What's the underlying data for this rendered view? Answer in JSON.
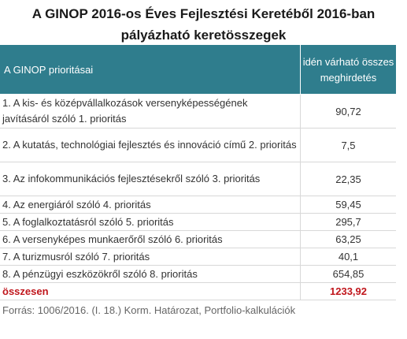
{
  "title": "A GINOP 2016-os Éves Fejlesztési Keretéből 2016-ban pályázható keretösszegek",
  "header": {
    "left": "A GINOP prioritásai",
    "right": "idén várható összes meghirdetés"
  },
  "rows": [
    {
      "label": "1. A kis- és középvállalkozások versenyképességének javításáról szóló 1. prioritás",
      "value": "90,72"
    },
    {
      "label": "2. A kutatás, technológiai fejlesztés és innováció című 2. prioritás",
      "value": "7,5"
    },
    {
      "label": "3. Az infokommunikációs fejlesztésekről szóló 3. prioritás",
      "value": "22,35"
    },
    {
      "label": "4. Az energiáról szóló 4. prioritás",
      "value": "59,45"
    },
    {
      "label": "5. A foglalkoztatásról szóló 5. prioritás",
      "value": "295,7"
    },
    {
      "label": "6. A versenyképes munkaerőről szóló 6. prioritás",
      "value": "63,25"
    },
    {
      "label": "7. A turizmusról szóló 7. prioritás",
      "value": "40,1"
    },
    {
      "label": "8. A pénzügyi eszközökről szóló 8. prioritás",
      "value": "654,85"
    }
  ],
  "total": {
    "label": "összesen",
    "value": "1233,92"
  },
  "source": "Forrás: 1006/2016. (I. 18.) Korm. Határozat, Portfolio-kalkulációk",
  "colors": {
    "header_bg": "#2f7d8d",
    "total_text": "#c0161c"
  }
}
